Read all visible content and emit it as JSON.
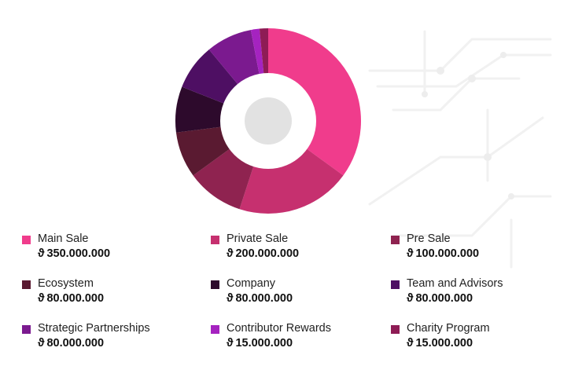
{
  "chart_data": {
    "type": "pie",
    "currency_symbol": "ϑ",
    "categories": [
      "Main Sale",
      "Private Sale",
      "Pre Sale",
      "Ecosystem",
      "Company",
      "Team and Advisors",
      "Strategic Partnerships",
      "Contributor Rewards",
      "Charity Program"
    ],
    "values": [
      350000000,
      200000000,
      100000000,
      80000000,
      80000000,
      80000000,
      80000000,
      15000000,
      15000000
    ],
    "value_labels": [
      "350.000.000",
      "200.000.000",
      "100.000.000",
      "80.000.000",
      "80.000.000",
      "80.000.000",
      "80.000.000",
      "15.000.000",
      "15.000.000"
    ],
    "colors": [
      "#f03c8c",
      "#c6306f",
      "#8f2350",
      "#5a1a31",
      "#2d0a2c",
      "#4e0f63",
      "#7b1a8f",
      "#a523c0",
      "#8e1c55"
    ],
    "hole_color": "#e2e2e2",
    "legend_placement": "bottom",
    "legend": [
      {
        "label": "Main Sale",
        "value": "350.000.000"
      },
      {
        "label": "Private Sale",
        "value": "200.000.000"
      },
      {
        "label": "Pre Sale",
        "value": "100.000.000"
      },
      {
        "label": "Ecosystem",
        "value": "80.000.000"
      },
      {
        "label": "Company",
        "value": "80.000.000"
      },
      {
        "label": "Team and Advisors",
        "value": "80.000.000"
      },
      {
        "label": "Strategic Partnerships",
        "value": "80.000.000"
      },
      {
        "label": "Contributor Rewards",
        "value": "15.000.000"
      },
      {
        "label": "Charity Program",
        "value": "15.000.000"
      }
    ]
  }
}
